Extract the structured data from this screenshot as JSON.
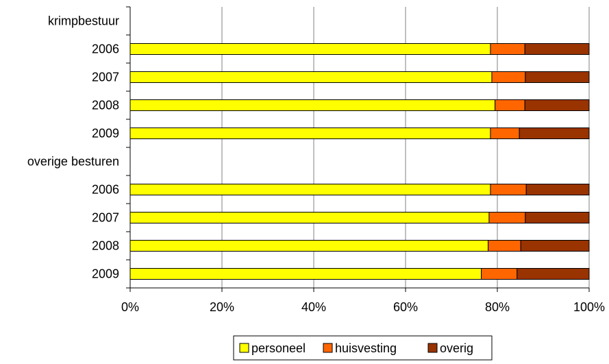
{
  "chart_data": {
    "type": "bar",
    "orientation": "horizontal",
    "stacked": "percent",
    "title": "",
    "xlabel": "",
    "ylabel": "",
    "xlim": [
      0,
      100
    ],
    "x_ticks": [
      "0%",
      "20%",
      "40%",
      "60%",
      "80%",
      "100%"
    ],
    "grid": "vertical",
    "legend_position": "bottom",
    "categories": [
      "krimpbestuur",
      "2006",
      "2007",
      "2008",
      "2009",
      "overige besturen",
      "2006",
      "2007",
      "2008",
      "2009"
    ],
    "series": [
      {
        "name": "personeel",
        "color": "#ffff00",
        "values": [
          null,
          78.5,
          78.8,
          79.5,
          78.5,
          null,
          78.5,
          78.2,
          78.0,
          76.5
        ]
      },
      {
        "name": "huisvesting",
        "color": "#ff6600",
        "values": [
          null,
          7.5,
          7.3,
          6.5,
          6.3,
          null,
          7.8,
          7.9,
          7.1,
          7.8
        ]
      },
      {
        "name": "overig",
        "color": "#993300",
        "values": [
          null,
          14.0,
          13.9,
          14.0,
          15.2,
          null,
          13.7,
          13.9,
          14.9,
          15.7
        ]
      }
    ]
  }
}
